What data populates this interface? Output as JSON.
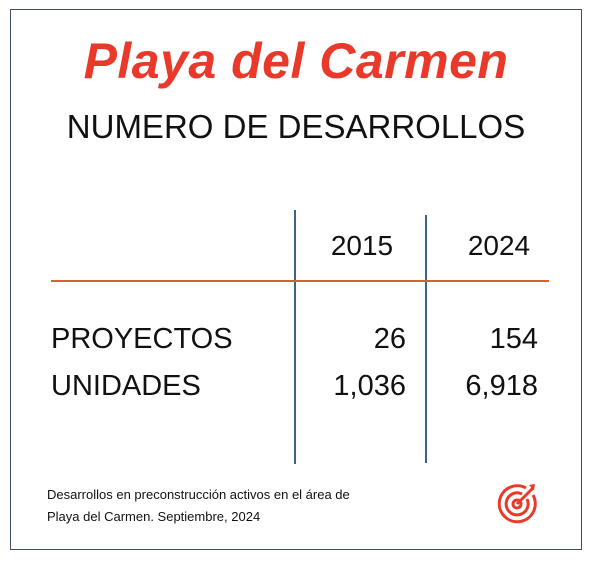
{
  "header": {
    "title": "Playa del Carmen",
    "subtitle": "NUMERO DE DESARROLLOS"
  },
  "table": {
    "columns": [
      "2015",
      "2024"
    ],
    "rows": [
      {
        "label": "PROYECTOS",
        "values": [
          "26",
          "154"
        ]
      },
      {
        "label": "UNIDADES",
        "values": [
          "1,036",
          "6,918"
        ]
      }
    ]
  },
  "footnote": {
    "line1": "Desarrollos en preconstrucción activos en el área de",
    "line2": "Playa del Carmen. Septiembre, 2024"
  },
  "colors": {
    "title": "#e8392a",
    "divider": "#d4622d",
    "column_rule": "#3d6580",
    "logo": "#e8392a"
  },
  "icons": {
    "logo": "target-arrow-icon"
  }
}
